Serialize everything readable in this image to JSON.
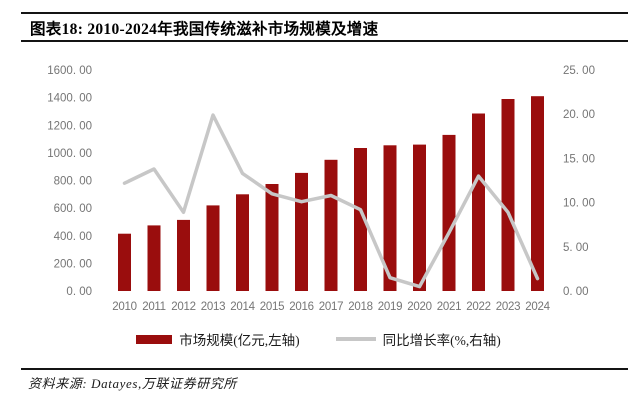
{
  "header": {
    "title": "图表18: 2010-2024年我国传统滋补市场规模及增速"
  },
  "footer": {
    "source": "资料来源: Datayes,万联证券研究所"
  },
  "chart_data": {
    "type": "bar+line",
    "title": "2010-2024年我国传统滋补市场规模及增速",
    "categories": [
      "2010",
      "2011",
      "2012",
      "2013",
      "2014",
      "2015",
      "2016",
      "2017",
      "2018",
      "2019",
      "2020",
      "2021",
      "2022",
      "2023",
      "2024"
    ],
    "series": [
      {
        "name": "市场规模(亿元,左轴)",
        "type": "bar",
        "axis": "left",
        "color": "#9a0d0d",
        "values": [
          415,
          475,
          515,
          620,
          700,
          775,
          855,
          950,
          1035,
          1055,
          1060,
          1130,
          1285,
          1390,
          1410
        ]
      },
      {
        "name": "同比增长率(%,右轴)",
        "type": "line",
        "axis": "right",
        "color": "#c7c7c7",
        "values": [
          12.2,
          13.8,
          8.9,
          19.9,
          13.3,
          11.0,
          10.1,
          10.8,
          9.2,
          1.5,
          0.5,
          6.6,
          13.0,
          8.9,
          1.4
        ]
      }
    ],
    "left_axis": {
      "min": 0,
      "max": 1600,
      "step": 200,
      "tick_labels": [
        "0. 00",
        "200. 00",
        "400. 00",
        "600. 00",
        "800. 00",
        "1000. 00",
        "1200. 00",
        "1400. 00",
        "1600. 00"
      ]
    },
    "right_axis": {
      "min": 0,
      "max": 25,
      "step": 5,
      "tick_labels": [
        "0. 00",
        "5. 00",
        "10. 00",
        "15. 00",
        "20. 00",
        "25. 00"
      ]
    },
    "grid": "off",
    "legend_position": "bottom",
    "tick_text_color": "#757575"
  }
}
